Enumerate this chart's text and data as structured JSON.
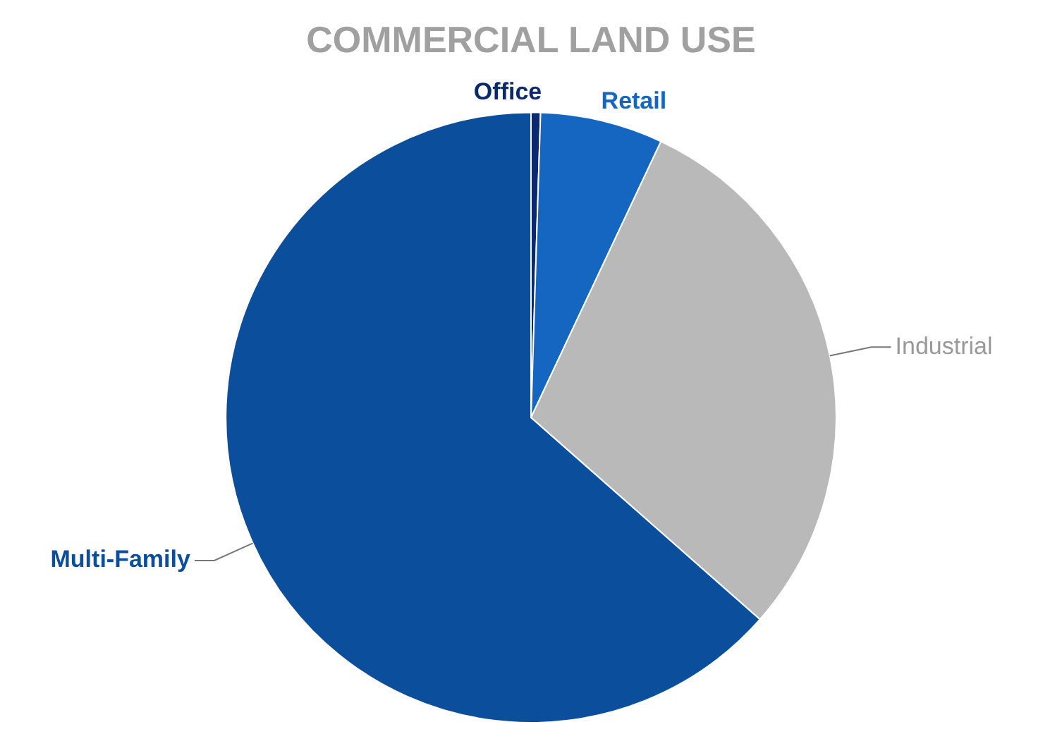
{
  "chart_data": {
    "type": "pie",
    "title": "COMMERCIAL LAND USE",
    "categories": [
      "Office",
      "Retail",
      "Industrial",
      "Multi-Family"
    ],
    "values": [
      0.5,
      6.5,
      29.5,
      63.5
    ],
    "colors": [
      "#0a2a6e",
      "#1466c0",
      "#b9b9b9",
      "#0b4f9c"
    ],
    "legend": false
  }
}
